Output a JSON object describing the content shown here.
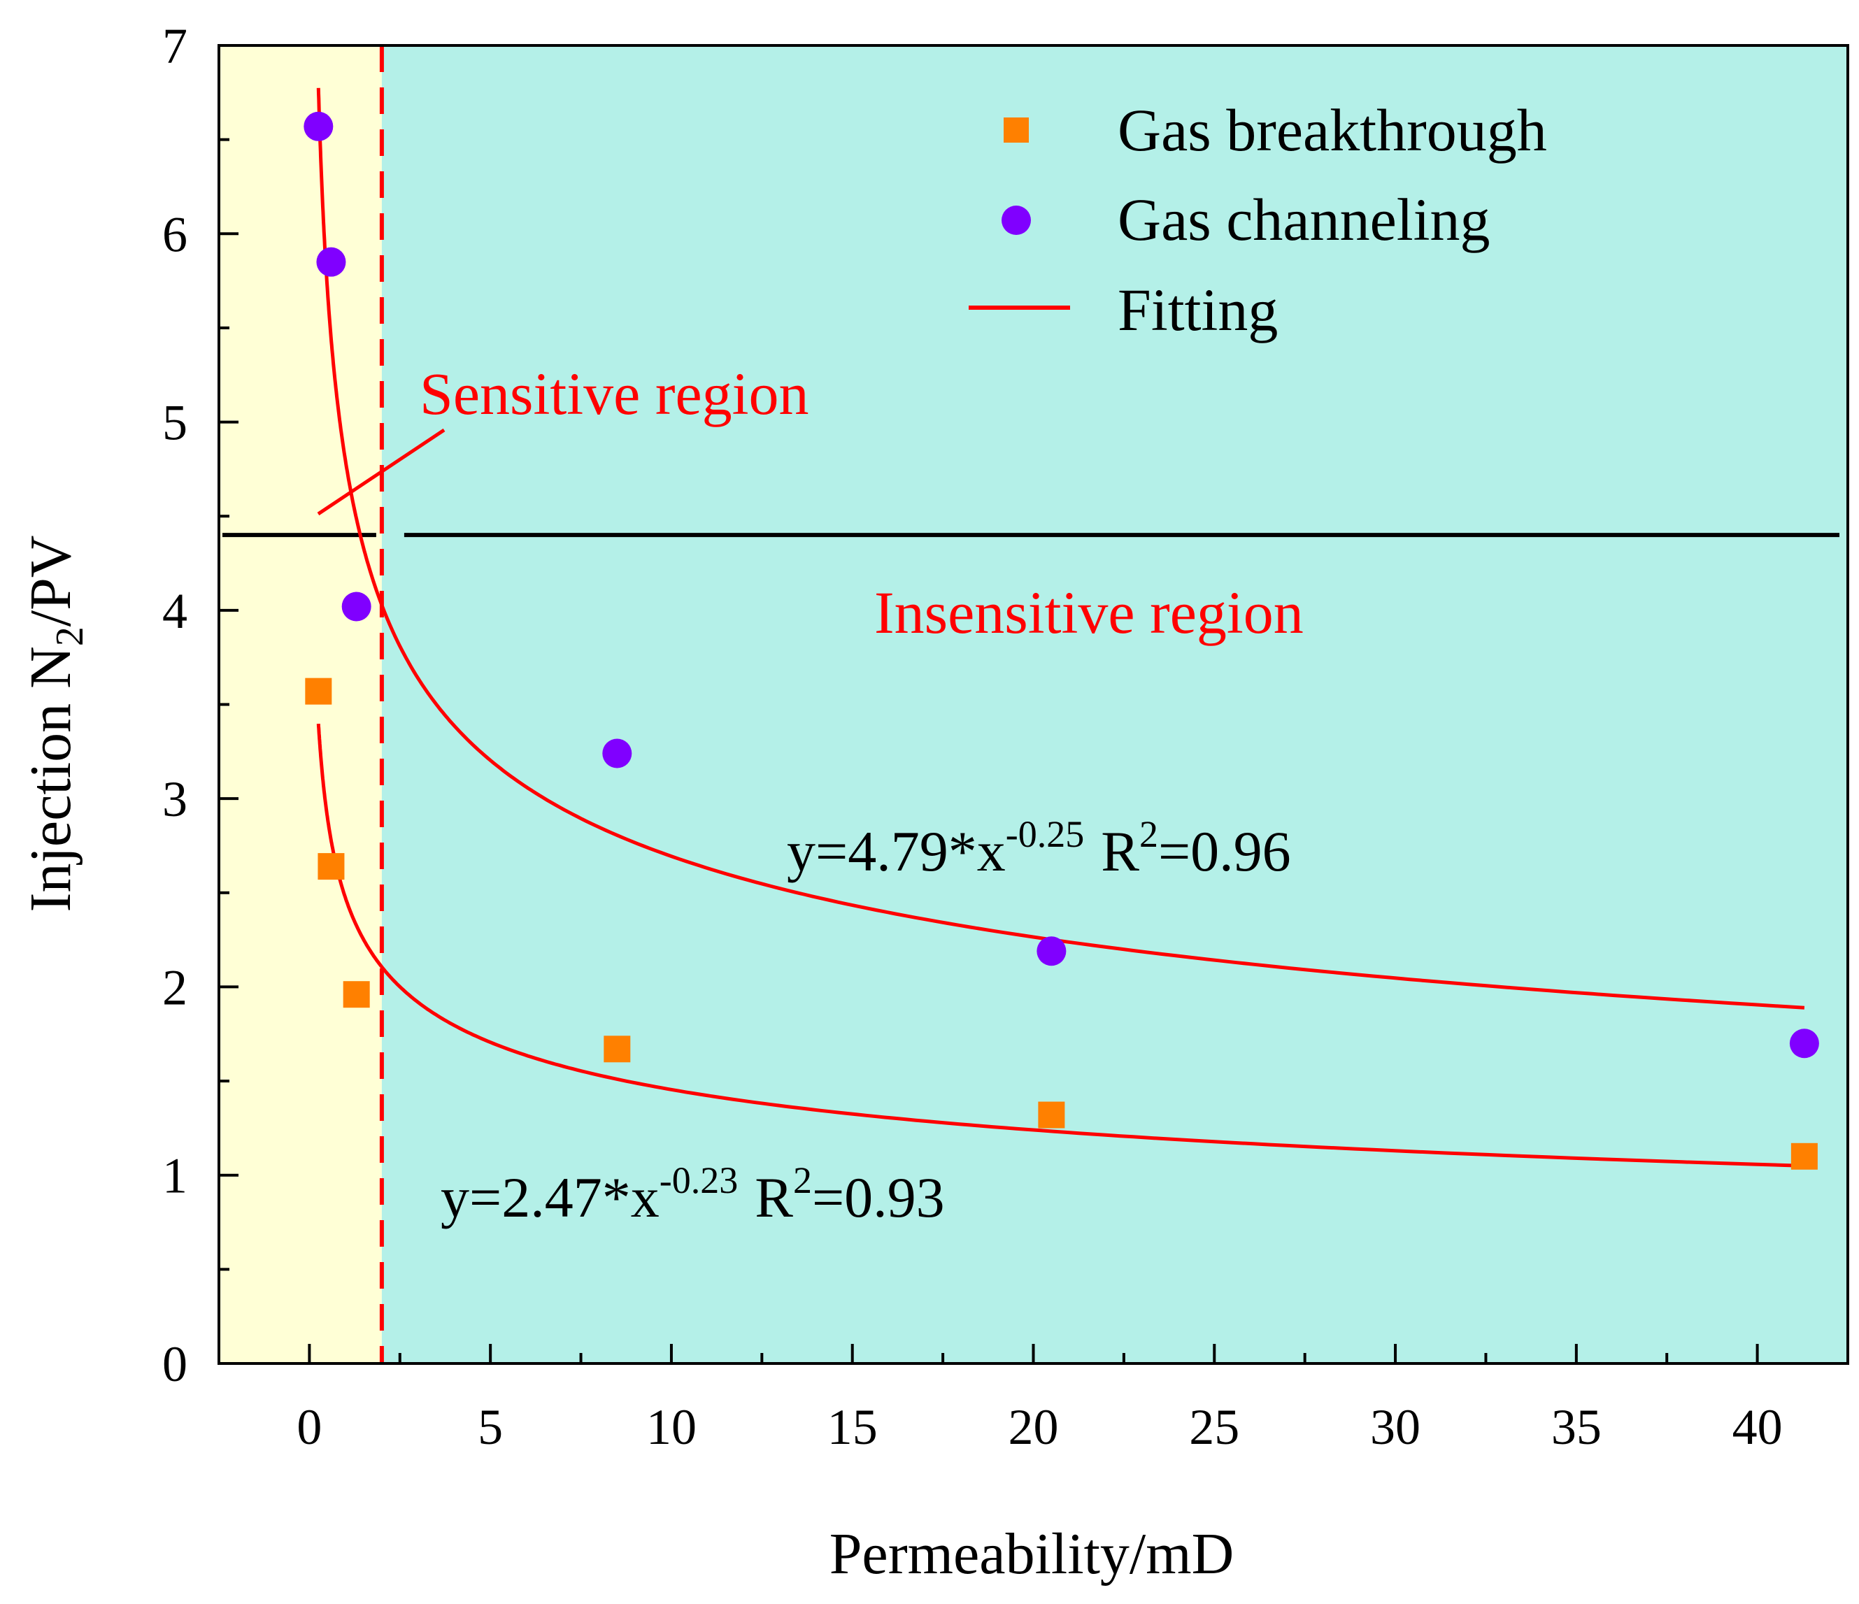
{
  "chart_data": {
    "type": "scatter",
    "xlabel": "Permeability/mD",
    "ylabel_parts": {
      "prefix": "Injection N",
      "subscript": "2",
      "suffix": "/PV"
    },
    "xlim": [
      -2.5,
      42.5
    ],
    "ylim": [
      0,
      7
    ],
    "x_ticks": [
      "0",
      "5",
      "10",
      "15",
      "20",
      "25",
      "30",
      "35",
      "40"
    ],
    "y_ticks": [
      "0",
      "1",
      "2",
      "3",
      "4",
      "5",
      "6",
      "7"
    ],
    "x_tick_values": [
      0,
      5,
      10,
      15,
      20,
      25,
      30,
      35,
      40
    ],
    "y_tick_values": [
      0,
      1,
      2,
      3,
      4,
      5,
      6,
      7
    ],
    "series": [
      {
        "name": "Gas breakthrough",
        "marker": "square",
        "color": "#FF8000",
        "x": [
          0.25,
          0.6,
          1.3,
          8.5,
          20.5,
          41.3
        ],
        "y": [
          3.57,
          2.64,
          1.96,
          1.67,
          1.32,
          1.1
        ]
      },
      {
        "name": "Gas channeling",
        "marker": "circle",
        "color": "#8000FF",
        "x": [
          0.25,
          0.6,
          1.3,
          8.5,
          20.5,
          41.3
        ],
        "y": [
          6.57,
          5.85,
          4.02,
          3.24,
          2.19,
          1.7
        ]
      }
    ],
    "fits": [
      {
        "name": "Fitting",
        "applies_to": "Gas channeling",
        "coef": 4.79,
        "exp": -0.25,
        "x_range": [
          0.25,
          41.3
        ],
        "label_prefix": "y=4.79*x",
        "label_exp": "-0.25",
        "r2_base": "R",
        "r2_sup": "2",
        "r2_value": "=0.96"
      },
      {
        "name": "Fitting",
        "applies_to": "Gas breakthrough",
        "coef": 2.47,
        "exp": -0.23,
        "x_range": [
          0.25,
          41.3
        ],
        "label_prefix": "y=2.47*x",
        "label_exp": "-0.23",
        "r2_base": "R",
        "r2_sup": "2",
        "r2_value": "=0.93"
      }
    ],
    "fit_color": "#FF0000",
    "region_boundary_x": 2.0,
    "regions": [
      {
        "label": "Sensitive region",
        "x_range": [
          -2.5,
          2.0
        ],
        "color": "#FFFFD6"
      },
      {
        "label": "Insensitive region",
        "x_range": [
          2.0,
          42.5
        ],
        "color": "#B4F0E8"
      }
    ],
    "region_label_color": "#FF0000",
    "region_arrow_y": 4.4,
    "legend": {
      "position": "top-right",
      "entries": [
        "Gas breakthrough",
        "Gas channeling",
        "Fitting"
      ]
    }
  }
}
